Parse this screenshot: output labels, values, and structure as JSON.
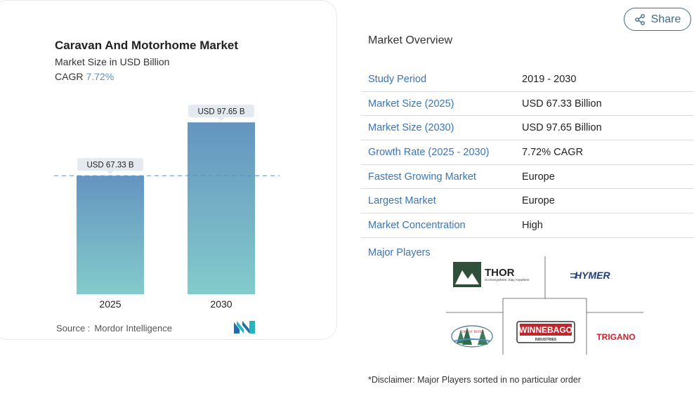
{
  "chart_card": {
    "title": "Caravan And Motorhome Market",
    "subtitle": "Market Size in USD Billion",
    "cagr_label": "CAGR",
    "cagr_value": "7.72%",
    "source_label": "Source :",
    "source_value": "Mordor Intelligence"
  },
  "chart_data": {
    "type": "bar",
    "categories": [
      "2025",
      "2030"
    ],
    "values": [
      67.33,
      97.65
    ],
    "data_labels": [
      "USD 67.33 B",
      "USD 97.65 B"
    ],
    "title": "Caravan And Motorhome Market",
    "subtitle": "Market Size in USD Billion",
    "xlabel": "",
    "ylabel": "",
    "ylim": [
      0,
      100
    ],
    "grid": false,
    "reference_line": 67.33,
    "colors": {
      "bar_top": "#6494c0",
      "bar_bottom": "#83cbcb",
      "label_bg": "#e4eaef",
      "ref_line": "#5b8fc0"
    }
  },
  "share": {
    "label": "Share"
  },
  "overview": {
    "title": "Market Overview",
    "rows": [
      {
        "key": "Study Period",
        "value": "2019 - 2030"
      },
      {
        "key": "Market Size (2025)",
        "value": "USD 67.33 Billion"
      },
      {
        "key": "Market Size (2030)",
        "value": "USD 97.65 Billion"
      },
      {
        "key": "Growth Rate (2025 - 2030)",
        "value": "7.72% CAGR"
      },
      {
        "key": "Fastest Growing Market",
        "value": "Europe"
      },
      {
        "key": "Largest Market",
        "value": "Europe"
      },
      {
        "key": "Market Concentration",
        "value": "High"
      }
    ]
  },
  "players": {
    "label": "Major Players",
    "thor_name": "THOR",
    "thor_tagline": "Go Everywhere. Stay Anywhere",
    "hymer": "HYMER",
    "forest_river": "FOREST RIVER",
    "winnebago": "WINNEBAGO",
    "winnebago_sub": "INDUSTRIES",
    "trigano": "TRIGANO"
  },
  "disclaimer": "*Disclaimer: Major Players sorted in no particular order",
  "icons": [
    "share-icon",
    "mordor-logo-icon"
  ]
}
